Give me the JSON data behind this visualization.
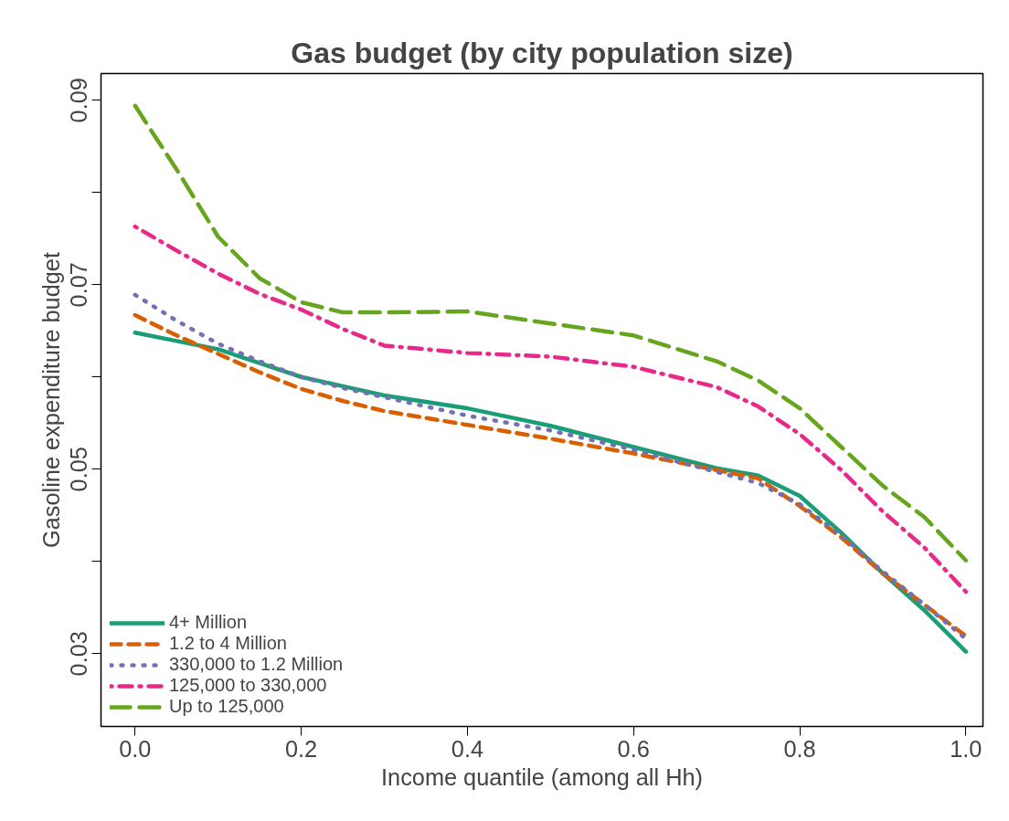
{
  "chart_data": {
    "type": "line",
    "title": "Gas budget (by city population size)",
    "xlabel": "Income quantile (among all Hh)",
    "ylabel": "Gasoline expenditure budget",
    "xlim": [
      -0.041,
      1.0205
    ],
    "ylim": [
      0.0221,
      0.0929
    ],
    "xticks": [
      {
        "value": 0,
        "label": "0.0"
      },
      {
        "value": 0.2,
        "label": "0.2"
      },
      {
        "value": 0.4,
        "label": "0.4"
      },
      {
        "value": 0.6,
        "label": "0.6"
      },
      {
        "value": 0.8,
        "label": "0.8"
      },
      {
        "value": 1,
        "label": "1.0"
      }
    ],
    "yticks": [
      0.03,
      {
        "value": 0.04,
        "label": null
      },
      0.05,
      {
        "value": 0.06,
        "label": null
      },
      0.07,
      {
        "value": 0.08,
        "label": null
      },
      0.09
    ],
    "grid": false,
    "legend": "bottom left",
    "x": [
      0,
      0.05,
      0.1,
      0.15,
      0.2,
      0.25,
      0.3,
      0.4,
      0.5,
      0.6,
      0.7,
      0.75,
      0.8,
      0.85,
      0.9,
      0.95,
      1.0
    ],
    "series": [
      {
        "name": "4+ Million",
        "color": "#1b9e77",
        "line_style": "solid",
        "values": [
          0.0648,
          0.0639,
          0.063,
          0.0615,
          0.06,
          0.059,
          0.058,
          0.0566,
          0.0547,
          0.0524,
          0.0501,
          0.0493,
          0.0471,
          0.0431,
          0.0387,
          0.0347,
          0.0302
        ]
      },
      {
        "name": "1.2 to 4 Million",
        "color": "#d95f02",
        "line_style": "dashed",
        "values": [
          0.0667,
          0.0645,
          0.0625,
          0.0605,
          0.0587,
          0.0574,
          0.0563,
          0.0548,
          0.0533,
          0.0517,
          0.0499,
          0.049,
          0.046,
          0.0426,
          0.0387,
          0.0353,
          0.0319
        ]
      },
      {
        "name": "330,000 to 1.2 Million",
        "color": "#7570b3",
        "line_style": "dotted",
        "values": [
          0.0689,
          0.0661,
          0.0636,
          0.0617,
          0.06,
          0.0588,
          0.0578,
          0.0558,
          0.0542,
          0.0521,
          0.0497,
          0.0485,
          0.0462,
          0.0428,
          0.0389,
          0.0353,
          0.0316
        ]
      },
      {
        "name": "125,000 to 330,000",
        "color": "#e7298a",
        "line_style": "dashdot",
        "values": [
          0.0763,
          0.0737,
          0.0712,
          0.069,
          0.0673,
          0.0652,
          0.0634,
          0.0626,
          0.0622,
          0.0611,
          0.0589,
          0.0568,
          0.0538,
          0.0499,
          0.0454,
          0.0415,
          0.0367
        ]
      },
      {
        "name": "Up to 125,000",
        "color": "#66a61e",
        "line_style": "longdash",
        "values": [
          0.0894,
          0.0825,
          0.0752,
          0.0707,
          0.0681,
          0.067,
          0.067,
          0.0671,
          0.0658,
          0.0645,
          0.0617,
          0.0596,
          0.0566,
          0.0524,
          0.0482,
          0.0448,
          0.0401
        ]
      }
    ]
  }
}
